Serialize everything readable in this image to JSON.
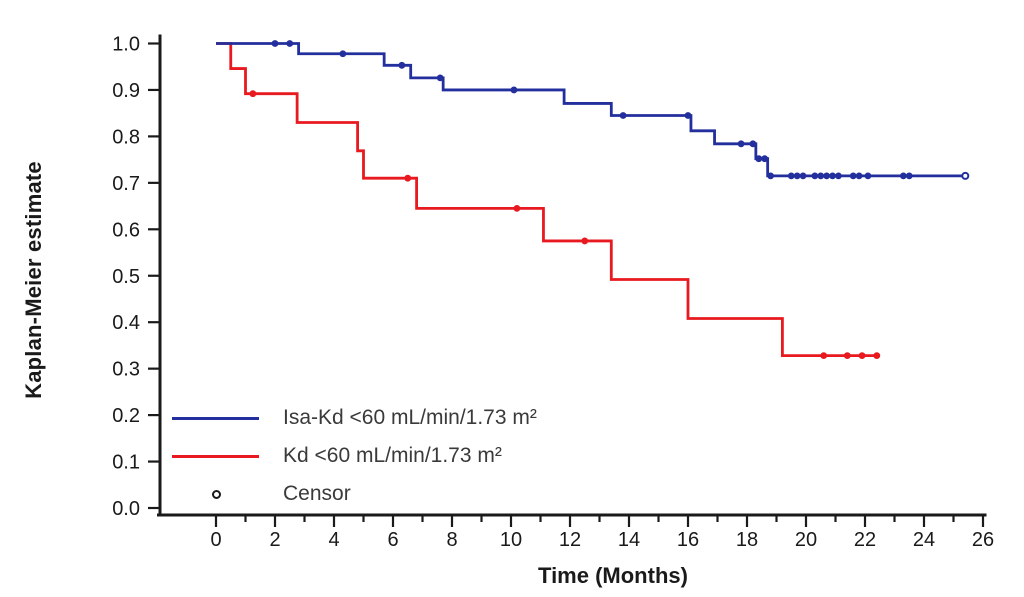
{
  "chart_data": {
    "type": "line",
    "subtype": "kaplan-meier-step",
    "title": "",
    "xlabel": "Time (Months)",
    "ylabel": "Kaplan-Meier estimate",
    "xlim": [
      0,
      26
    ],
    "ylim": [
      0.0,
      1.0
    ],
    "grid": false,
    "legend_position": "inside-bottom-left",
    "x_ticks_major": [
      0,
      2,
      4,
      6,
      8,
      10,
      12,
      14,
      16,
      18,
      20,
      22,
      24,
      26
    ],
    "x_ticks_minor": [
      1,
      3,
      5,
      7,
      9,
      11,
      13,
      15,
      17,
      19,
      21,
      23,
      25
    ],
    "y_ticks": [
      {
        "v": 0.0,
        "label": "0.0"
      },
      {
        "v": 0.1,
        "label": "0.1"
      },
      {
        "v": 0.2,
        "label": "0.2"
      },
      {
        "v": 0.3,
        "label": "0.3"
      },
      {
        "v": 0.4,
        "label": "0.4"
      },
      {
        "v": 0.5,
        "label": "0.5"
      },
      {
        "v": 0.6,
        "label": "0.6"
      },
      {
        "v": 0.7,
        "label": "0.7"
      },
      {
        "v": 0.8,
        "label": "0.8"
      },
      {
        "v": 0.9,
        "label": "0.9"
      },
      {
        "v": 1.0,
        "label": "1.0"
      }
    ],
    "series": [
      {
        "name": "Isa-Kd <60 mL/min/1.73 m²",
        "color": "#222F9D",
        "steps": [
          [
            0,
            1.0
          ],
          [
            2.8,
            0.978
          ],
          [
            5.7,
            0.953
          ],
          [
            6.6,
            0.926
          ],
          [
            7.7,
            0.9
          ],
          [
            11.8,
            0.871
          ],
          [
            13.4,
            0.845
          ],
          [
            16.1,
            0.812
          ],
          [
            16.9,
            0.784
          ],
          [
            18.3,
            0.752
          ],
          [
            18.7,
            0.715
          ]
        ],
        "end_time": 25.4,
        "end_marker": "open-circle",
        "censors": [
          [
            2.0,
            1.0
          ],
          [
            2.5,
            1.0
          ],
          [
            4.3,
            0.978
          ],
          [
            6.3,
            0.953
          ],
          [
            7.6,
            0.926
          ],
          [
            10.1,
            0.9
          ],
          [
            13.8,
            0.845
          ],
          [
            16.0,
            0.845
          ],
          [
            17.8,
            0.784
          ],
          [
            18.2,
            0.784
          ],
          [
            18.4,
            0.752
          ],
          [
            18.6,
            0.752
          ],
          [
            18.8,
            0.715
          ],
          [
            19.5,
            0.715
          ],
          [
            19.7,
            0.715
          ],
          [
            19.9,
            0.715
          ],
          [
            20.3,
            0.715
          ],
          [
            20.5,
            0.715
          ],
          [
            20.7,
            0.715
          ],
          [
            20.9,
            0.715
          ],
          [
            21.1,
            0.715
          ],
          [
            21.6,
            0.715
          ],
          [
            21.8,
            0.715
          ],
          [
            22.1,
            0.715
          ],
          [
            23.3,
            0.715
          ],
          [
            23.5,
            0.715
          ]
        ]
      },
      {
        "name": "Kd <60 mL/min/1.73 m²",
        "color": "#E8191F",
        "steps": [
          [
            0,
            1.0
          ],
          [
            0.5,
            0.946
          ],
          [
            1.0,
            0.892
          ],
          [
            2.75,
            0.83
          ],
          [
            4.8,
            0.769
          ],
          [
            5.0,
            0.71
          ],
          [
            6.8,
            0.645
          ],
          [
            11.1,
            0.575
          ],
          [
            13.4,
            0.492
          ],
          [
            16.0,
            0.408
          ],
          [
            19.2,
            0.328
          ]
        ],
        "end_time": 22.5,
        "end_marker": "none",
        "censors": [
          [
            1.25,
            0.892
          ],
          [
            6.5,
            0.71
          ],
          [
            10.2,
            0.645
          ],
          [
            12.5,
            0.575
          ],
          [
            20.6,
            0.328
          ],
          [
            21.4,
            0.328
          ],
          [
            21.9,
            0.328
          ],
          [
            22.4,
            0.328
          ]
        ]
      }
    ],
    "legend": {
      "censor_label": "Censor"
    }
  }
}
